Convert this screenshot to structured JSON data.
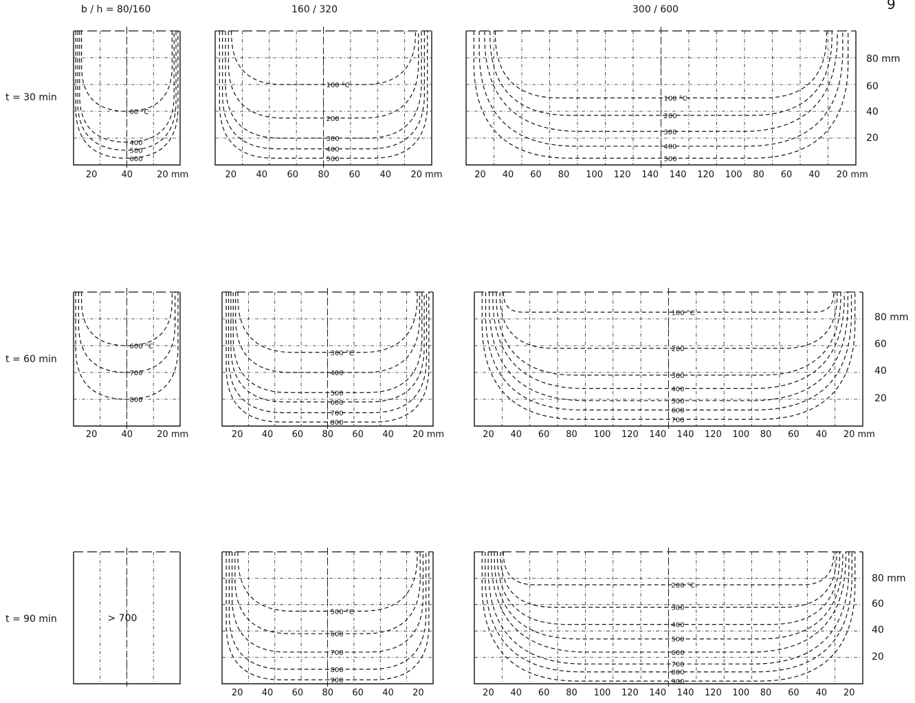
{
  "page_number": "9",
  "column_headers": [
    "b / h = 80/160",
    "160 / 320",
    "300 / 600"
  ],
  "row_labels": [
    "t = 30 min",
    "t = 60 min",
    "t = 90 min"
  ],
  "right_axis": {
    "labels": [
      "80 mm",
      "60",
      "40",
      "20"
    ]
  },
  "panels": [
    {
      "id": "r1c1",
      "kind": "small",
      "y_marks": 5,
      "contours": [
        {
          "label": "00 °C",
          "depth": 0.4
        },
        {
          "label": "400",
          "depth": 0.17
        },
        {
          "label": "500",
          "depth": 0.11
        },
        {
          "label": "600",
          "depth": 0.05
        }
      ],
      "x_ticks": [
        "20",
        "40",
        "20 mm"
      ]
    },
    {
      "id": "r1c2",
      "kind": "medium",
      "contours": [
        {
          "label": "100 °C",
          "depth": 0.6
        },
        {
          "label": "200",
          "depth": 0.35
        },
        {
          "label": "300",
          "depth": 0.2
        },
        {
          "label": "400",
          "depth": 0.12
        },
        {
          "label": "500",
          "depth": 0.05
        }
      ],
      "x_ticks": [
        "20",
        "40",
        "60",
        "80",
        "60",
        "40",
        "20 mm"
      ]
    },
    {
      "id": "r1c3",
      "kind": "large",
      "contours": [
        {
          "label": "100 °C",
          "depth": 0.5
        },
        {
          "label": "200",
          "depth": 0.37
        },
        {
          "label": "300",
          "depth": 0.25
        },
        {
          "label": "400",
          "depth": 0.14
        },
        {
          "label": "500",
          "depth": 0.05
        }
      ],
      "x_ticks": [
        "20",
        "40",
        "60",
        "80",
        "100",
        "120",
        "140",
        "140",
        "120",
        "100",
        "80",
        "60",
        "40",
        "20 mm"
      ]
    },
    {
      "id": "r2c1",
      "kind": "small",
      "contours": [
        {
          "label": "600 °C",
          "depth": 0.6
        },
        {
          "label": "700",
          "depth": 0.4
        },
        {
          "label": "800",
          "depth": 0.2
        }
      ],
      "x_ticks": [
        "20",
        "40",
        "20 mm"
      ]
    },
    {
      "id": "r2c2",
      "kind": "medium",
      "contours": [
        {
          "label": "300 °C",
          "depth": 0.55
        },
        {
          "label": "400",
          "depth": 0.4
        },
        {
          "label": "500",
          "depth": 0.25
        },
        {
          "label": "600",
          "depth": 0.18
        },
        {
          "label": "700",
          "depth": 0.1
        },
        {
          "label": "800",
          "depth": 0.03
        }
      ],
      "x_ticks": [
        "20",
        "40",
        "60",
        "80",
        "60",
        "40",
        "20 mm"
      ]
    },
    {
      "id": "r2c3",
      "kind": "large",
      "contours": [
        {
          "label": "100 °C",
          "depth": 0.85
        },
        {
          "label": "200",
          "depth": 0.58
        },
        {
          "label": "300",
          "depth": 0.38
        },
        {
          "label": "400",
          "depth": 0.28
        },
        {
          "label": "500",
          "depth": 0.19
        },
        {
          "label": "600",
          "depth": 0.12
        },
        {
          "label": "700",
          "depth": 0.05
        }
      ],
      "x_ticks": [
        "20",
        "40",
        "60",
        "80",
        "100",
        "120",
        "140",
        "140",
        "120",
        "100",
        "80",
        "60",
        "40",
        "20 mm"
      ]
    },
    {
      "id": "r3c1",
      "kind": "small_solid",
      "center_text": "> 700",
      "contours": [],
      "x_ticks": []
    },
    {
      "id": "r3c2",
      "kind": "medium",
      "contours": [
        {
          "label": "500 °C",
          "depth": 0.55
        },
        {
          "label": "600",
          "depth": 0.38
        },
        {
          "label": "700",
          "depth": 0.24
        },
        {
          "label": "800",
          "depth": 0.11
        },
        {
          "label": "900",
          "depth": 0.03
        }
      ],
      "x_ticks": [
        "20",
        "40",
        "60",
        "80",
        "60",
        "40",
        "20"
      ]
    },
    {
      "id": "r3c3",
      "kind": "large",
      "contours": [
        {
          "label": "200 °C",
          "depth": 0.75
        },
        {
          "label": "300",
          "depth": 0.58
        },
        {
          "label": "400",
          "depth": 0.45
        },
        {
          "label": "500",
          "depth": 0.34
        },
        {
          "label": "600",
          "depth": 0.24
        },
        {
          "label": "700",
          "depth": 0.15
        },
        {
          "label": "800",
          "depth": 0.09
        },
        {
          "label": "900",
          "depth": 0.02
        }
      ],
      "x_ticks": [
        "20",
        "40",
        "60",
        "80",
        "100",
        "120",
        "140",
        "140",
        "120",
        "100",
        "80",
        "60",
        "40",
        "20"
      ]
    }
  ]
}
